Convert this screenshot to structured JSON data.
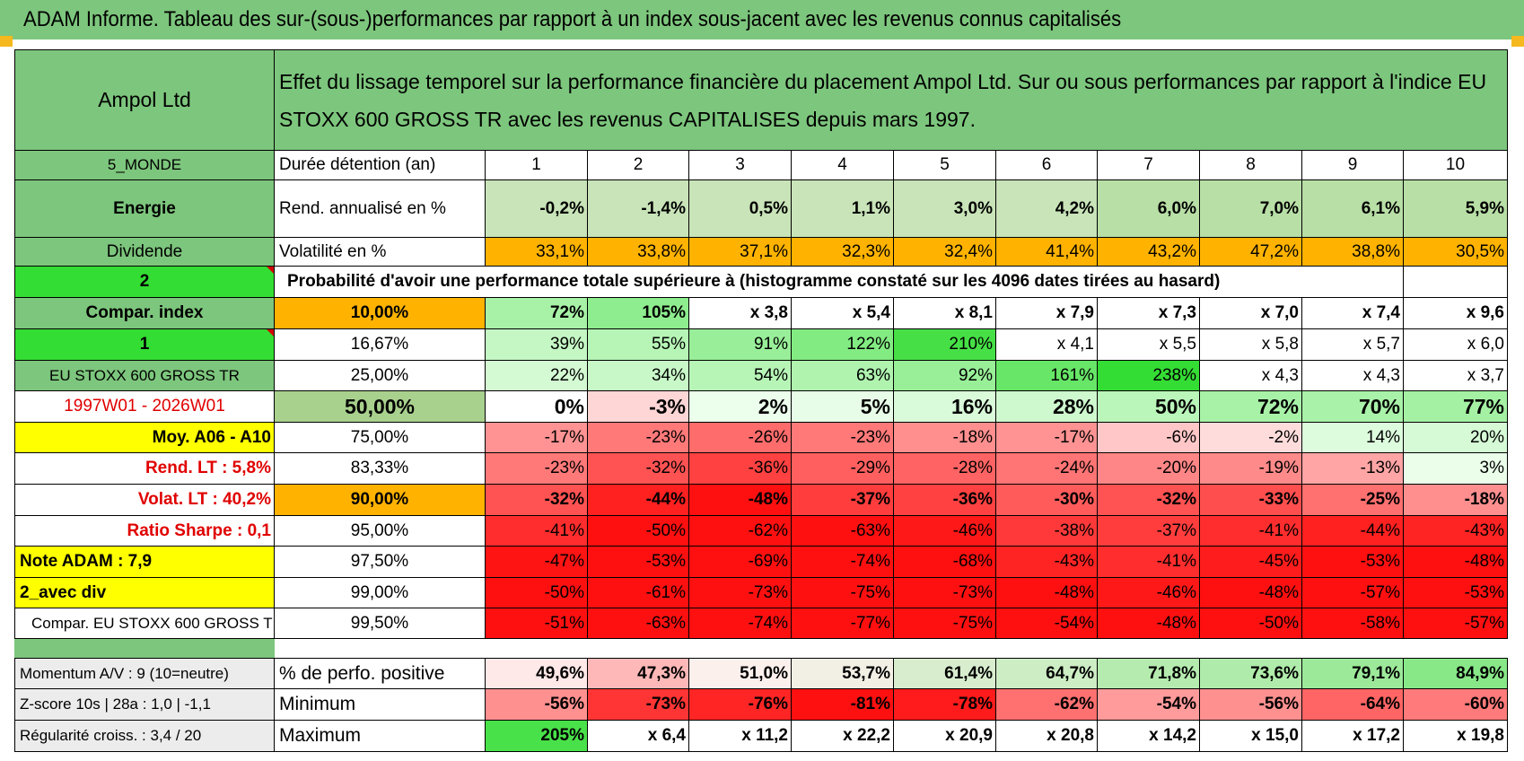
{
  "banner": {
    "title": "ADAM Informe. Tableau des sur-(sous-)performances par rapport à un index sous-jacent avec les revenus connus capitalisés"
  },
  "colors": {
    "green_header": "#7dc67d",
    "bright_green": "#33dd33",
    "orange": "#ffb300",
    "yellow": "#ffff00",
    "label_red": "#e00000"
  },
  "left": {
    "company": "Ampol Ltd",
    "zone": "5_MONDE",
    "sector": "Energie",
    "type": "Dividende",
    "code1": "2",
    "compar_index_label": "Compar. index",
    "code2": "1",
    "index_name": "EU STOXX 600 GROSS TR",
    "period": "1997W01 - 2026W01",
    "moy_label": "Moy. A06 - A10",
    "rend_lt": "Rend. LT :    5,8%",
    "volat_lt": "Volat. LT :    40,2%",
    "sharpe": "Ratio Sharpe :    0,1",
    "note": "Note ADAM : 7,9",
    "avec_div": "2_avec div",
    "compar_full": "Compar. EU STOXX 600 GROSS TR"
  },
  "header_text": "Effet du lissage temporel sur la performance financière du placement Ampol Ltd. Sur ou sous performances par rapport à l'indice EU STOXX 600 GROSS TR avec les revenus CAPITALISES depuis mars 1997.",
  "table": {
    "duree_label": "Durée détention (an)",
    "years": [
      "1",
      "2",
      "3",
      "4",
      "5",
      "6",
      "7",
      "8",
      "9",
      "10"
    ],
    "rend_label": "Rend. annualisé en %",
    "rend": [
      "-0,2%",
      "-1,4%",
      "0,5%",
      "1,1%",
      "3,0%",
      "4,2%",
      "6,0%",
      "7,0%",
      "6,1%",
      "5,9%"
    ],
    "vol_label": "Volatilité en %",
    "vol": [
      "33,1%",
      "33,8%",
      "37,1%",
      "32,3%",
      "32,4%",
      "41,4%",
      "43,2%",
      "47,2%",
      "38,8%",
      "30,5%"
    ],
    "prob_label": "Probabilité d'avoir une performance totale supérieure à (histogramme constaté sur les 4096 dates tirées au hasard)",
    "quantiles": [
      {
        "p": "10,00%",
        "v": [
          "72%",
          "105%",
          "x 3,8",
          "x 5,4",
          "x 8,1",
          "x 7,9",
          "x 7,3",
          "x 7,0",
          "x 7,4",
          "x 9,6"
        ]
      },
      {
        "p": "16,67%",
        "v": [
          "39%",
          "55%",
          "91%",
          "122%",
          "210%",
          "x 4,1",
          "x 5,5",
          "x 5,8",
          "x 5,7",
          "x 6,0"
        ]
      },
      {
        "p": "25,00%",
        "v": [
          "22%",
          "34%",
          "54%",
          "63%",
          "92%",
          "161%",
          "238%",
          "x 4,3",
          "x 4,3",
          "x 3,7"
        ]
      },
      {
        "p": "50,00%",
        "v": [
          "0%",
          "-3%",
          "2%",
          "5%",
          "16%",
          "28%",
          "50%",
          "72%",
          "70%",
          "77%"
        ]
      },
      {
        "p": "75,00%",
        "v": [
          "-17%",
          "-23%",
          "-26%",
          "-23%",
          "-18%",
          "-17%",
          "-6%",
          "-2%",
          "14%",
          "20%"
        ]
      },
      {
        "p": "83,33%",
        "v": [
          "-23%",
          "-32%",
          "-36%",
          "-29%",
          "-28%",
          "-24%",
          "-20%",
          "-19%",
          "-13%",
          "3%"
        ]
      },
      {
        "p": "90,00%",
        "v": [
          "-32%",
          "-44%",
          "-48%",
          "-37%",
          "-36%",
          "-30%",
          "-32%",
          "-33%",
          "-25%",
          "-18%"
        ]
      },
      {
        "p": "95,00%",
        "v": [
          "-41%",
          "-50%",
          "-62%",
          "-63%",
          "-46%",
          "-38%",
          "-37%",
          "-41%",
          "-44%",
          "-43%"
        ]
      },
      {
        "p": "97,50%",
        "v": [
          "-47%",
          "-53%",
          "-69%",
          "-74%",
          "-68%",
          "-43%",
          "-41%",
          "-45%",
          "-53%",
          "-48%"
        ]
      },
      {
        "p": "99,00%",
        "v": [
          "-50%",
          "-61%",
          "-73%",
          "-75%",
          "-73%",
          "-48%",
          "-46%",
          "-48%",
          "-57%",
          "-53%"
        ]
      },
      {
        "p": "99,50%",
        "v": [
          "-51%",
          "-63%",
          "-74%",
          "-77%",
          "-75%",
          "-54%",
          "-48%",
          "-50%",
          "-58%",
          "-57%"
        ]
      }
    ],
    "bottom": [
      {
        "left": "Momentum A/V : 9 (10=neutre)",
        "label": "% de perfo. positive",
        "v": [
          "49,6%",
          "47,3%",
          "51,0%",
          "53,7%",
          "61,4%",
          "64,7%",
          "71,8%",
          "73,6%",
          "79,1%",
          "84,9%"
        ]
      },
      {
        "left": "Z-score 10s | 28a : 1,0 | -1,1",
        "label": "Minimum",
        "v": [
          "-56%",
          "-73%",
          "-76%",
          "-81%",
          "-78%",
          "-62%",
          "-54%",
          "-56%",
          "-64%",
          "-60%"
        ]
      },
      {
        "left": "Régularité croiss. : 3,4 / 20",
        "label": "Maximum",
        "v": [
          "205%",
          "x 6,4",
          "x 11,2",
          "x 22,2",
          "x 20,9",
          "x 20,8",
          "x 14,2",
          "x 15,0",
          "x 17,2",
          "x 19,8"
        ]
      }
    ]
  }
}
